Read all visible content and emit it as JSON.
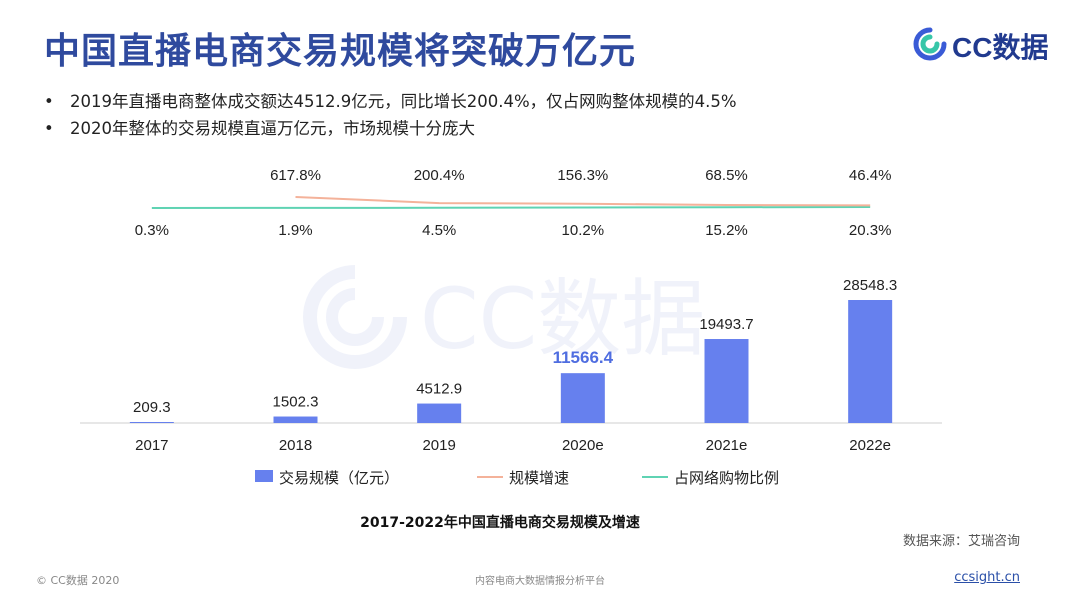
{
  "header": {
    "title": "中国直播电商交易规模将突破万亿元",
    "logo_text": "CC数据",
    "bullet_symbol": "•",
    "bullets": [
      "2019年直播电商整体成交额达4512.9亿元，同比增长200.4%，仅占网购整体规模的4.5%",
      "2020年整体的交易规模直逼万亿元，市场规模十分庞大"
    ]
  },
  "watermark": {
    "text": "CC数据"
  },
  "chart_data": {
    "type": "bar",
    "title": "2017-2022年中国直播电商交易规模及增速",
    "categories": [
      "2017",
      "2018",
      "2019",
      "2020e",
      "2021e",
      "2022e"
    ],
    "series": [
      {
        "name": "交易规模（亿元）",
        "type": "bar",
        "values": [
          209.3,
          1502.3,
          4512.9,
          11566.4,
          19493.7,
          28548.3
        ],
        "labels": [
          "209.3",
          "1502.3",
          "4512.9",
          "11566.4",
          "19493.7",
          "28548.3"
        ]
      },
      {
        "name": "规模增速",
        "type": "line",
        "unit": "%",
        "values": [
          null,
          617.8,
          200.4,
          156.3,
          68.5,
          46.4
        ],
        "labels": [
          "",
          "617.8%",
          "200.4%",
          "156.3%",
          "68.5%",
          "46.4%"
        ]
      },
      {
        "name": "占网络购物比例",
        "type": "line",
        "unit": "%",
        "values": [
          0.3,
          1.9,
          4.5,
          10.2,
          15.2,
          20.3
        ],
        "labels": [
          "0.3%",
          "1.9%",
          "4.5%",
          "10.2%",
          "15.2%",
          "20.3%"
        ]
      }
    ],
    "ylim": [
      0,
      30000
    ],
    "highlight_index": 3,
    "colors": {
      "bar": "#6680ee",
      "growth": "#f4b29a",
      "share": "#5fd3b3",
      "highlight_label": "#4f6de0"
    }
  },
  "source": "数据来源：艾瑞咨询",
  "footer": {
    "copyright": "© CC数据 2020",
    "platform": "内容电商大数据情报分析平台",
    "url": "ccsight.cn"
  }
}
